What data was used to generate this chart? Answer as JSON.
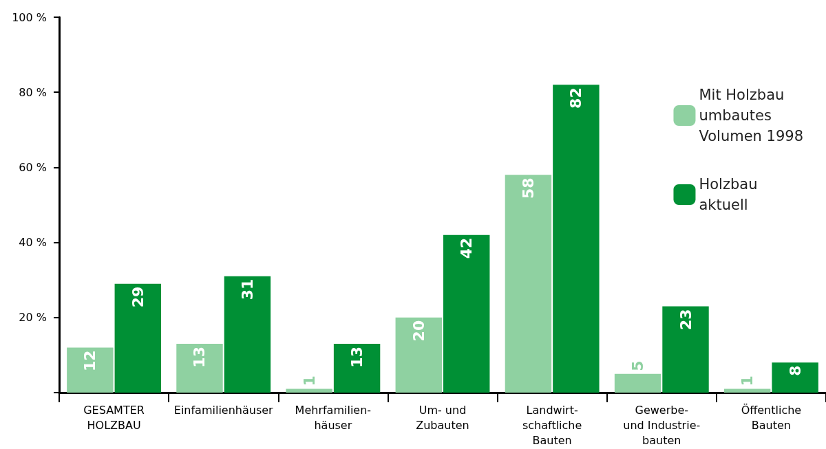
{
  "chart_data": {
    "type": "bar",
    "categories": [
      "GESAMTER\nHOLZBAU",
      "Einfamilienhäuser",
      "Mehrfamilien-\nhäuser",
      "Um- und\nZubauten",
      "Landwirt-\nschaftliche\nBauten",
      "Gewerbe-\nund Industrie-\nbauten",
      "Öffentliche\nBauten"
    ],
    "series": [
      {
        "name": "Mit Holzbau\numbautes\nVolumen 1998",
        "color": "#8fd1a1",
        "values": [
          12,
          13,
          1,
          20,
          58,
          5,
          1
        ]
      },
      {
        "name": "Holzbau\naktuell",
        "color": "#009035",
        "values": [
          29,
          31,
          13,
          42,
          82,
          23,
          8
        ]
      }
    ],
    "ylim": [
      0,
      100
    ],
    "yticks": [
      {
        "value": 0,
        "label": null
      },
      {
        "value": 20,
        "label": "20 %"
      },
      {
        "value": 40,
        "label": "40 %"
      },
      {
        "value": 60,
        "label": "60 %"
      },
      {
        "value": 80,
        "label": "80 %"
      },
      {
        "value": 100,
        "label": "100 %"
      }
    ],
    "grid": false,
    "legend": "top right",
    "data_labels": true
  }
}
